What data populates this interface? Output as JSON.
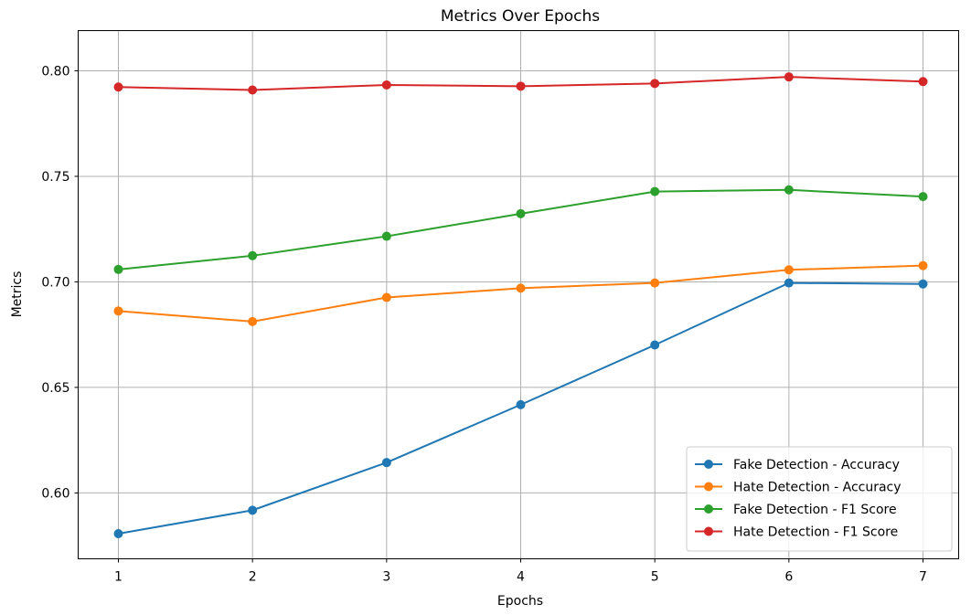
{
  "chart_data": {
    "type": "line",
    "title": "Metrics Over Epochs",
    "xlabel": "Epochs",
    "ylabel": "Metrics",
    "x": [
      1,
      2,
      3,
      4,
      5,
      6,
      7
    ],
    "xlim": [
      0.7,
      7.3
    ],
    "ylim": [
      0.5807,
      0.808
    ],
    "xticks": [
      "1",
      "2",
      "3",
      "4",
      "5",
      "6",
      "7"
    ],
    "yticks": [
      "0.60",
      "0.65",
      "0.70",
      "0.75",
      "0.80"
    ],
    "ytick_values": [
      0.6,
      0.65,
      0.7,
      0.75,
      0.8
    ],
    "grid": true,
    "legend_position": "bottom-right",
    "series": [
      {
        "name": "Fake Detection - Accuracy",
        "color": "#1f77b4",
        "values": [
          0.5807,
          0.5918,
          0.6144,
          0.6418,
          0.6701,
          0.6995,
          0.699
        ]
      },
      {
        "name": "Hate Detection - Accuracy",
        "color": "#ff7f0e",
        "values": [
          0.6862,
          0.6812,
          0.6926,
          0.697,
          0.6995,
          0.7057,
          0.7077
        ]
      },
      {
        "name": "Fake Detection - F1 Score",
        "color": "#2ca02c",
        "values": [
          0.7059,
          0.7124,
          0.7216,
          0.7323,
          0.7428,
          0.7436,
          0.7404
        ]
      },
      {
        "name": "Hate Detection - F1 Score",
        "color": "#d62728",
        "values": [
          0.7923,
          0.7909,
          0.7933,
          0.7927,
          0.794,
          0.7971,
          0.7949
        ]
      }
    ]
  }
}
